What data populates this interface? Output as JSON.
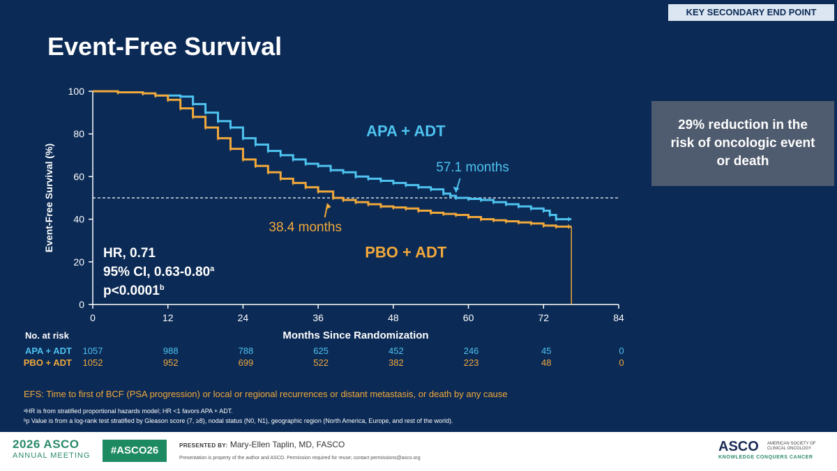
{
  "slide": {
    "badge": "KEY SECONDARY END POINT",
    "title": "Event-Free Survival",
    "callout": "29% reduction in the\nrisk of oncologic event\nor death",
    "stats": {
      "hr": "HR, 0.71",
      "ci": "95% CI, 0.63-0.80",
      "ci_sup": "a",
      "p": "p<0.0001",
      "p_sup": "b"
    },
    "efs_definition": "EFS: Time to first of BCF (PSA progression) or local or regional recurrences or distant metastasis, or death by any cause",
    "footnote_a": "ᵃHR is from stratified proportional hazards model; HR <1 favors APA + ADT.",
    "footnote_b": "ᵇp Value is from a log-rank test stratified by Gleason score (7, ≥8), nodal status (N0, N1), geographic region (North America, Europe, and rest of the world)."
  },
  "risk_table": {
    "heading": "No. at risk",
    "rows": [
      {
        "label": "APA + ADT",
        "values": [
          "1057",
          "988",
          "788",
          "625",
          "452",
          "246",
          "45",
          "0"
        ]
      },
      {
        "label": "PBO + ADT",
        "values": [
          "1052",
          "952",
          "699",
          "522",
          "382",
          "223",
          "48",
          "0"
        ]
      }
    ]
  },
  "chart_data": {
    "type": "line",
    "xlabel": "Months Since Randomization",
    "ylabel": "Event-Free Survival (%)",
    "xlim": [
      0,
      84
    ],
    "ylim": [
      0,
      100
    ],
    "xticks": [
      0,
      12,
      24,
      36,
      48,
      60,
      72,
      84
    ],
    "yticks": [
      0,
      20,
      40,
      60,
      80,
      100
    ],
    "reference_line_y": 50,
    "series": [
      {
        "name": "APA + ADT",
        "color": "#4fc3f0",
        "x": [
          0,
          4,
          8,
          10,
          14,
          16,
          18,
          20,
          22,
          24,
          26,
          28,
          30,
          32,
          34,
          36,
          38,
          40,
          42,
          44,
          46,
          48,
          50,
          52,
          54,
          56,
          57.1,
          58,
          60,
          62,
          64,
          66,
          68,
          70,
          72,
          73,
          74,
          76
        ],
        "y": [
          100,
          99.5,
          99,
          98,
          97.5,
          94,
          90,
          86,
          83,
          78,
          75,
          72,
          70,
          68,
          66,
          65,
          63,
          62,
          60,
          59,
          58,
          57,
          56,
          55,
          54,
          52,
          51,
          50,
          49.5,
          49,
          48,
          47,
          46,
          45,
          44,
          42,
          40,
          40
        ]
      },
      {
        "name": "PBO + ADT",
        "color": "#f2a93b",
        "x": [
          0,
          4,
          8,
          10,
          12,
          14,
          16,
          18,
          20,
          22,
          24,
          26,
          28,
          30,
          32,
          34,
          36,
          38.4,
          40,
          42,
          44,
          46,
          48,
          50,
          52,
          54,
          56,
          58,
          60,
          62,
          64,
          66,
          68,
          70,
          72,
          74,
          76
        ],
        "y": [
          100,
          99.5,
          99,
          98,
          96,
          92,
          88,
          83,
          78,
          73,
          68,
          65,
          62,
          59,
          57,
          55,
          53,
          50,
          49,
          48,
          47,
          46,
          45.5,
          45,
          44,
          43,
          42.5,
          42,
          41,
          40,
          39.5,
          39,
          38.5,
          38,
          37,
          36.5,
          36.5
        ]
      }
    ],
    "annotations": [
      {
        "text": "57.1 months",
        "series": "APA + ADT",
        "x": 57.1,
        "y": 50
      },
      {
        "text": "38.4 months",
        "series": "PBO + ADT",
        "x": 38.4,
        "y": 50
      }
    ],
    "series_labels": [
      {
        "text": "APA + ADT",
        "x": 50,
        "y": 79
      },
      {
        "text": "PBO + ADT",
        "x": 50,
        "y": 22
      }
    ]
  },
  "footer": {
    "meeting_year": "2026 ASCO",
    "meeting_name": "ANNUAL MEETING",
    "hashtag": "#ASCO26",
    "presented_label": "PRESENTED BY:",
    "presenter": "Mary-Ellen Taplin, MD, FASCO",
    "disclaimer": "Presentation is property of the author and ASCO. Permission required for reuse; contact permissions@asco.org",
    "org_name": "ASCO",
    "org_full": "AMERICAN SOCIETY OF CLINICAL ONCOLOGY",
    "org_tagline": "KNOWLEDGE CONQUERS CANCER"
  },
  "colors": {
    "background": "#0b2a55",
    "apa": "#4fc3f0",
    "pbo": "#f2a93b"
  }
}
